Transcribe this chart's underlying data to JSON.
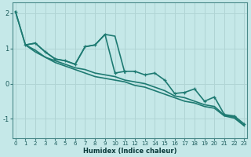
{
  "xlabel": "Humidex (Indice chaleur)",
  "background_color": "#c5e8e8",
  "grid_color": "#b0d4d4",
  "line_color": "#1e7a72",
  "yticks": [
    -1,
    0,
    1,
    2
  ],
  "xticks": [
    0,
    1,
    2,
    3,
    4,
    5,
    6,
    7,
    8,
    9,
    10,
    11,
    12,
    13,
    14,
    15,
    16,
    17,
    18,
    19,
    20,
    21,
    22,
    23
  ],
  "xlim": [
    -0.3,
    23.3
  ],
  "ylim": [
    -1.55,
    2.3
  ],
  "series": [
    {
      "x": [
        0,
        1,
        2,
        3,
        4,
        5,
        6,
        7,
        8,
        9,
        10,
        11,
        12,
        13,
        14,
        15,
        16,
        17,
        18,
        19,
        20,
        21,
        22,
        23
      ],
      "y": [
        2.05,
        1.1,
        1.15,
        0.9,
        0.7,
        0.65,
        0.55,
        1.05,
        1.1,
        1.4,
        0.3,
        0.35,
        0.35,
        0.25,
        0.3,
        0.1,
        -0.28,
        -0.25,
        -0.15,
        -0.5,
        -0.38,
        -0.88,
        -0.92,
        -1.15
      ],
      "marker": true,
      "linewidth": 1.2
    },
    {
      "x": [
        1,
        2,
        3,
        4,
        5,
        6,
        7,
        8,
        9,
        10,
        11
      ],
      "y": [
        1.1,
        1.15,
        0.9,
        0.7,
        0.65,
        0.55,
        1.05,
        1.1,
        1.4,
        1.35,
        0.3
      ],
      "marker": false,
      "linewidth": 1.2
    },
    {
      "x": [
        0,
        1,
        2,
        3,
        4,
        5,
        6,
        7,
        8,
        9,
        10,
        11,
        12,
        13,
        14,
        15,
        16,
        17,
        18,
        19,
        20,
        21,
        22,
        23
      ],
      "y": [
        2.05,
        1.1,
        0.95,
        0.75,
        0.65,
        0.55,
        0.45,
        0.4,
        0.3,
        0.25,
        0.2,
        0.1,
        0.05,
        -0.0,
        -0.1,
        -0.2,
        -0.35,
        -0.4,
        -0.5,
        -0.6,
        -0.65,
        -0.9,
        -0.95,
        -1.2
      ],
      "marker": false,
      "linewidth": 1.2
    },
    {
      "x": [
        1,
        2,
        3,
        4,
        5,
        6,
        7,
        8,
        9,
        10,
        11,
        12,
        13,
        14,
        15,
        16,
        17,
        18,
        19,
        20,
        21,
        22,
        23
      ],
      "y": [
        1.1,
        0.9,
        0.75,
        0.6,
        0.5,
        0.4,
        0.3,
        0.2,
        0.15,
        0.1,
        0.05,
        -0.05,
        -0.1,
        -0.2,
        -0.3,
        -0.4,
        -0.5,
        -0.55,
        -0.65,
        -0.7,
        -0.92,
        -0.98,
        -1.2
      ],
      "marker": false,
      "linewidth": 1.2
    }
  ]
}
